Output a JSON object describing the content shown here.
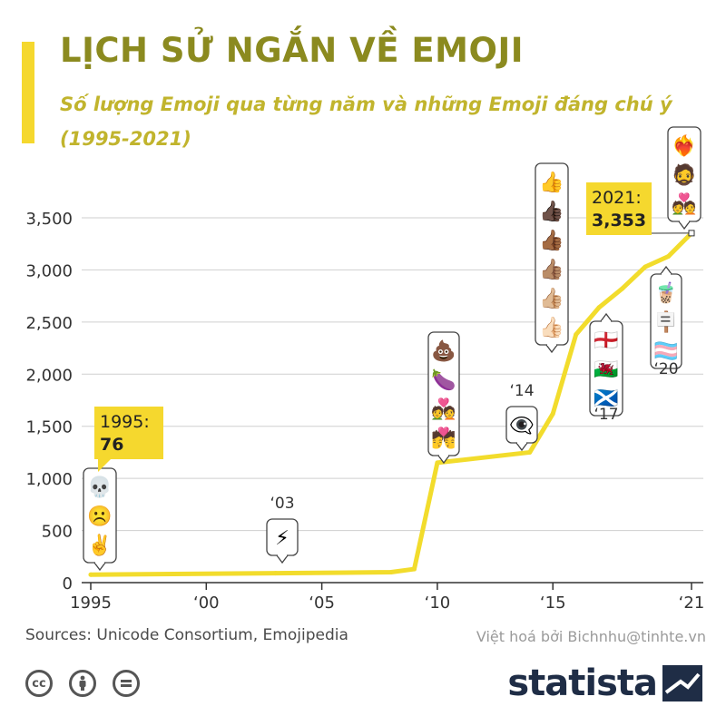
{
  "header": {
    "title": "LỊCH SỬ NGẮN VỀ EMOJI",
    "subtitle": "Số lượng Emoji qua từng năm và những Emoji đáng chú ý (1995-2021)"
  },
  "colors": {
    "accent": "#f5d82e",
    "title": "#8b8a1f",
    "subtitle": "#c1b42d",
    "line": "#f2dc2c",
    "brand": "#1f2d46"
  },
  "chart_data": {
    "type": "line",
    "x": [
      1995,
      2003,
      2008,
      2009,
      2010,
      2014,
      2015,
      2016,
      2017,
      2018,
      2019,
      2020,
      2021
    ],
    "series": [
      {
        "values": [
          76,
          90,
          100,
          130,
          1150,
          1250,
          1620,
          2380,
          2640,
          2820,
          3030,
          3130,
          3353
        ]
      }
    ],
    "xlim": [
      1995,
      2021
    ],
    "ylim": [
      0,
      3500
    ],
    "xticks": [
      1995,
      2000,
      2005,
      2010,
      2015,
      2021
    ],
    "xtick_labels": [
      "1995",
      "‘00",
      "‘05",
      "‘10",
      "‘15",
      "‘21"
    ],
    "yticks": [
      0,
      500,
      1000,
      1500,
      2000,
      2500,
      3000,
      3500
    ],
    "ytick_labels": [
      "0",
      "500",
      "1,000",
      "1,500",
      "2,000",
      "2,500",
      "3,000",
      "3,500"
    ],
    "grid": true,
    "callouts": [
      {
        "year": 1995,
        "label": "1995:",
        "value": "76"
      },
      {
        "year": 2021,
        "label": "2021:",
        "value": "3,353"
      }
    ],
    "annotations": [
      {
        "year_label": "",
        "emojis": [
          "💀",
          "☹️",
          "✌️"
        ]
      },
      {
        "year_label": "‘03",
        "emojis": [
          "⚡"
        ]
      },
      {
        "year_label": "",
        "emojis": [
          "💩",
          "🍆",
          "💑",
          "💏"
        ]
      },
      {
        "year_label": "‘14",
        "emojis": [
          "👁️‍🗨️"
        ]
      },
      {
        "year_label": "",
        "emojis": [
          "👍",
          "👍🏿",
          "👍🏾",
          "👍🏽",
          "👍🏼",
          "👍🏻"
        ]
      },
      {
        "year_label": "‘17",
        "emojis": [
          "🏴󠁧󠁢󠁥󠁮󠁧󠁿",
          "🏴󠁧󠁢󠁷󠁬󠁳󠁿",
          "🏴󠁧󠁢󠁳󠁣󠁴󠁿"
        ]
      },
      {
        "year_label": "‘20",
        "emojis": [
          "🧋",
          "🪧",
          "🏳️‍⚧️"
        ]
      },
      {
        "year_label": "",
        "emojis": [
          "❤️‍🔥",
          "🧔",
          "💑"
        ]
      }
    ]
  },
  "footer": {
    "sources": "Sources: Unicode Consortium, Emojipedia",
    "credit": "Việt hoá bởi Bichnhu@tinhte.vn",
    "license_icons": [
      "cc-icon",
      "person-icon",
      "equals-icon"
    ],
    "brand": "statista"
  }
}
